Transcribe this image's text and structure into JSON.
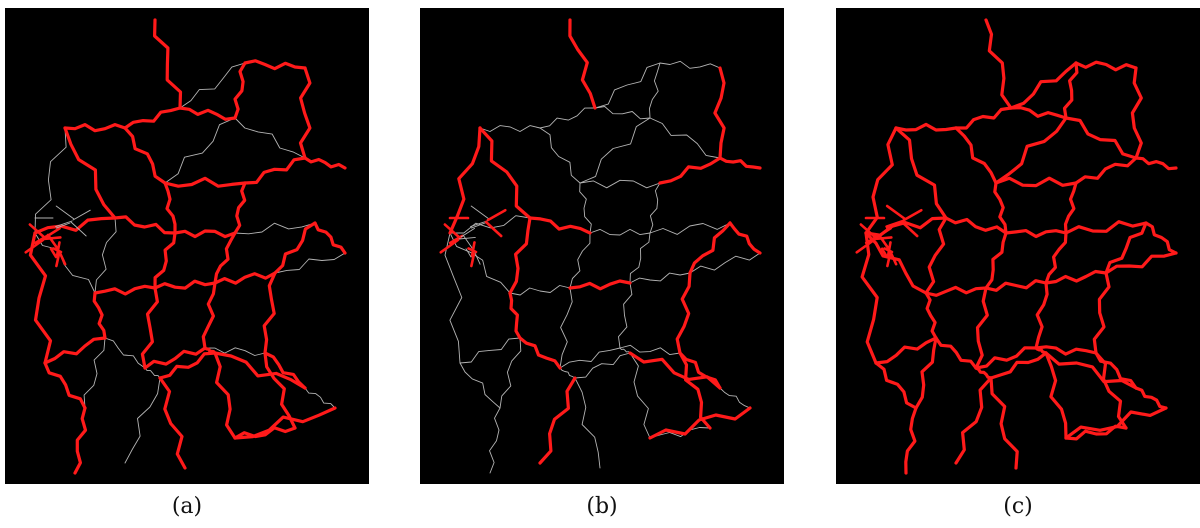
{
  "colors": {
    "background": "#000000",
    "highlighted_road": "#ff1a1a",
    "other_road": "#b4b4b4"
  },
  "panels": [
    {
      "caption": "(a)"
    },
    {
      "caption": "(b)"
    },
    {
      "caption": "(c)"
    }
  ]
}
